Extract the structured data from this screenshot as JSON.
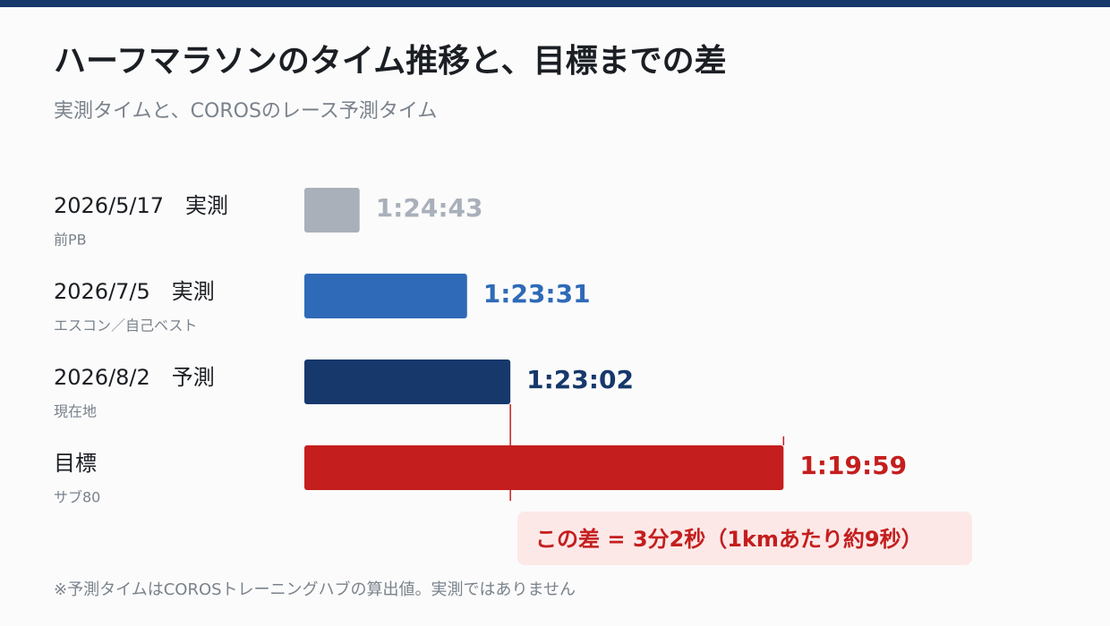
{
  "chart_data": {
    "type": "bar",
    "orientation": "horizontal",
    "title": "ハーフマラソンのタイム推移と、目標までの差",
    "subtitle": "実測タイムと、COROSのレース予測タイム",
    "categories": [
      "2026/5/17　実測",
      "2026/7/5　実測",
      "2026/8/2　予測",
      "目標"
    ],
    "sublabels": [
      "前PB",
      "エスコン／自己ベスト",
      "現在地",
      "サブ80"
    ],
    "values": [
      5083,
      5011,
      4982,
      4799
    ],
    "value_labels": [
      "1:24:43",
      "1:23:31",
      "1:23:02",
      "1:19:59"
    ],
    "colors": [
      "#a9b0b9",
      "#2e6ab8",
      "#16386b",
      "#c41e1e"
    ],
    "xlim": [
      5120,
      4780
    ],
    "annotation": "この差 = 3分2秒（1kmあたり約9秒）",
    "footnote": "※予測タイムはCOROSトレーニングハブの算出値。実測ではありません"
  }
}
